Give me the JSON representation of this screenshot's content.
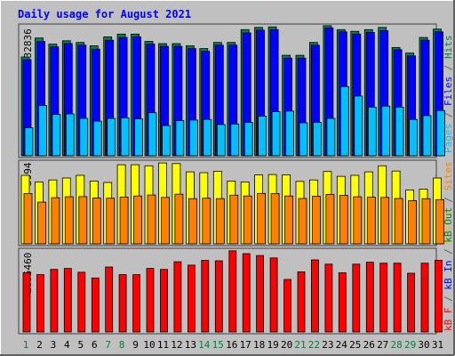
{
  "title": "Daily usage for August 2021",
  "panels": {
    "top": {
      "max_label": "232836",
      "legend": [
        {
          "text": "Pages",
          "color": "#00c0ff"
        },
        {
          "text": " / ",
          "color": "#606060"
        },
        {
          "text": "Files",
          "color": "#0000ff"
        },
        {
          "text": " / ",
          "color": "#606060"
        },
        {
          "text": "Hits",
          "color": "#008040"
        }
      ]
    },
    "middle": {
      "max_label": "3994",
      "legend": [
        {
          "text": "Visits",
          "color": "#e0c000"
        },
        {
          "text": " / ",
          "color": "#606060"
        },
        {
          "text": "Sites",
          "color": "#ff8000"
        }
      ]
    },
    "bottom": {
      "max_label": "1695460",
      "legend": [
        {
          "text": "kB F",
          "color": "#ff0000"
        },
        {
          "text": " / ",
          "color": "#606060"
        },
        {
          "text": "kB In",
          "color": "#0000ff"
        },
        {
          "text": " / ",
          "color": "#606060"
        },
        {
          "text": "kB Out",
          "color": "#008040"
        }
      ]
    }
  },
  "colors": {
    "background": "#c0c0c0",
    "title": "#0000ff",
    "hits": "#00804b",
    "files": "#0000ff",
    "pages": "#00c0ff",
    "visits": "#ffff00",
    "sites": "#ff8000",
    "kbytes": "#ff0000",
    "weekday_label": "#000000",
    "weekend_label": "#008040"
  },
  "chart_data": {
    "type": "bar",
    "title": "Daily usage for August 2021",
    "x": [
      "1",
      "2",
      "3",
      "4",
      "5",
      "6",
      "7",
      "8",
      "9",
      "10",
      "11",
      "12",
      "13",
      "14",
      "15",
      "16",
      "17",
      "18",
      "19",
      "20",
      "21",
      "22",
      "23",
      "24",
      "25",
      "26",
      "27",
      "28",
      "29",
      "30",
      "31"
    ],
    "weekend_days": [
      "1",
      "7",
      "8",
      "14",
      "15",
      "21",
      "22",
      "28",
      "29"
    ],
    "panels": [
      {
        "name": "Pages / Files / Hits",
        "max_label": "232836",
        "ylim": [
          0,
          232836
        ],
        "series": [
          {
            "name": "Hits",
            "values": [
              177000,
              211000,
              200000,
              206000,
              203000,
              197000,
              213000,
              218000,
              218000,
              205000,
              201000,
              201000,
              197000,
              192000,
              203000,
              203000,
              226000,
              230000,
              231000,
              180000,
              180000,
              203000,
              233000,
              226000,
              223000,
              226000,
              230000,
              194000,
              184000,
              212000,
              227000
            ]
          },
          {
            "name": "Files",
            "values": [
              172000,
              205000,
              195000,
              201000,
              198000,
              191000,
              207000,
              212000,
              213000,
              200000,
              196000,
              196000,
              192000,
              187000,
              198000,
              198000,
              220000,
              225000,
              226000,
              175000,
              175000,
              198000,
              229000,
              222000,
              218000,
              221000,
              224000,
              190000,
              179000,
              207000,
              222000
            ]
          },
          {
            "name": "Pages",
            "values": [
              50000,
              90000,
              74000,
              75000,
              67000,
              62000,
              67000,
              68000,
              66000,
              77000,
              54000,
              63000,
              64000,
              65000,
              56000,
              57000,
              60000,
              71000,
              79000,
              80000,
              59000,
              60000,
              67000,
              124000,
              107000,
              87000,
              89000,
              87000,
              65000,
              72000,
              81000
            ]
          }
        ]
      },
      {
        "name": "Visits / Sites",
        "max_label": "3994",
        "ylim": [
          0,
          3994
        ],
        "series": [
          {
            "name": "Visits",
            "values": [
              3380,
              3050,
              3150,
              3250,
              3380,
              3100,
              3030,
              3900,
              3900,
              3850,
              3990,
              3960,
              3550,
              3510,
              3580,
              3100,
              3050,
              3400,
              3420,
              3400,
              3080,
              3150,
              3570,
              3330,
              3380,
              3550,
              3850,
              3590,
              2660,
              2700,
              3250
            ]
          },
          {
            "name": "Sites",
            "values": [
              2480,
              2060,
              2280,
              2320,
              2330,
              2260,
              2250,
              2310,
              2360,
              2410,
              2290,
              2450,
              2230,
              2250,
              2230,
              2400,
              2360,
              2490,
              2480,
              2360,
              2240,
              2350,
              2440,
              2390,
              2320,
              2300,
              2290,
              2240,
              2130,
              2230,
              2180
            ]
          }
        ]
      },
      {
        "name": "kB F / kB In / kB Out",
        "max_label": "1695460",
        "ylim": [
          0,
          1695460
        ],
        "series": [
          {
            "name": "kB F",
            "values": [
              1240000,
              1200000,
              1310000,
              1330000,
              1250000,
              1130000,
              1360000,
              1200000,
              1200000,
              1330000,
              1310000,
              1470000,
              1400000,
              1500000,
              1490000,
              1700000,
              1640000,
              1600000,
              1550000,
              1100000,
              1260000,
              1510000,
              1420000,
              1240000,
              1420000,
              1460000,
              1440000,
              1440000,
              1230000,
              1440000,
              1500000
            ]
          }
        ]
      }
    ]
  }
}
